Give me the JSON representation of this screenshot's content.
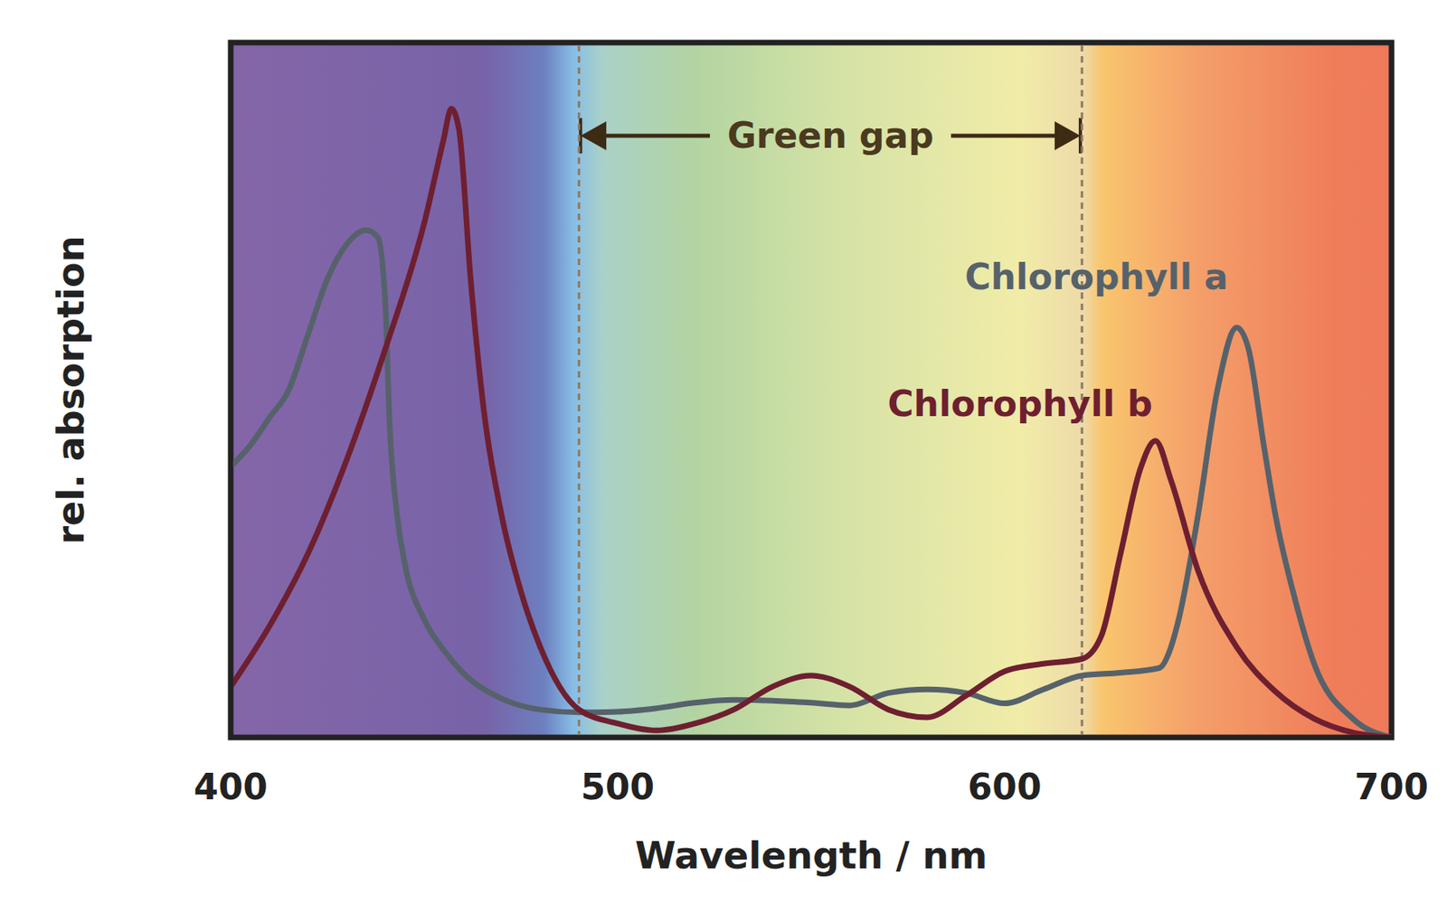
{
  "chart_data": {
    "type": "line",
    "x_label": "Wavelength / nm",
    "y_label": "rel. absorption",
    "xlim": [
      400,
      700
    ],
    "xticks": [
      400,
      500,
      600,
      700
    ],
    "ylim": [
      0,
      100
    ],
    "tick_labels": "x",
    "series": [
      {
        "name": "Chlorophyll a",
        "color": "#56626b",
        "x": [
          400,
          405,
          410,
          415,
          420,
          425,
          430,
          435,
          438,
          440,
          441,
          443,
          445,
          450,
          455,
          460,
          470,
          480,
          490,
          500,
          510,
          520,
          530,
          540,
          550,
          560,
          570,
          580,
          590,
          600,
          610,
          620,
          630,
          640,
          643,
          645,
          650,
          655,
          660,
          663,
          667,
          670,
          675,
          680,
          690,
          700
        ],
        "values": [
          39,
          42,
          46,
          50,
          58,
          66,
          71,
          73,
          72,
          62,
          46,
          32,
          25,
          17,
          12.6,
          9.3,
          5.6,
          4,
          3.6,
          3.7,
          4.2,
          5,
          5.4,
          5.3,
          5,
          4.6,
          6.4,
          6.9,
          6.4,
          4.9,
          6.9,
          8.9,
          9.3,
          10,
          13,
          17,
          32,
          50,
          59,
          56,
          42,
          32,
          20,
          10.6,
          2.7,
          0
        ]
      },
      {
        "name": "Chlorophyll b",
        "color": "#6e1f30",
        "x": [
          400,
          410,
          420,
          430,
          440,
          450,
          455,
          457,
          459,
          462,
          465,
          470,
          475,
          480,
          490,
          500,
          510,
          520,
          530,
          540,
          550,
          560,
          570,
          580,
          590,
          600,
          610,
          620,
          625,
          630,
          635,
          639,
          643,
          650,
          660,
          670,
          680,
          690,
          700
        ],
        "values": [
          7.3,
          16,
          26.5,
          40,
          56,
          74,
          86,
          90.5,
          87.5,
          66,
          49,
          32,
          21,
          13,
          4,
          2,
          1,
          2,
          4,
          7.3,
          8.9,
          7.3,
          4,
          2.9,
          6,
          9.5,
          10.6,
          11.3,
          14.6,
          26.5,
          38.5,
          42.7,
          37,
          24,
          13,
          6.6,
          2.7,
          0.7,
          0
        ]
      }
    ],
    "annotations": [
      {
        "text": "Green gap",
        "x": [
          490,
          620
        ]
      }
    ]
  }
}
